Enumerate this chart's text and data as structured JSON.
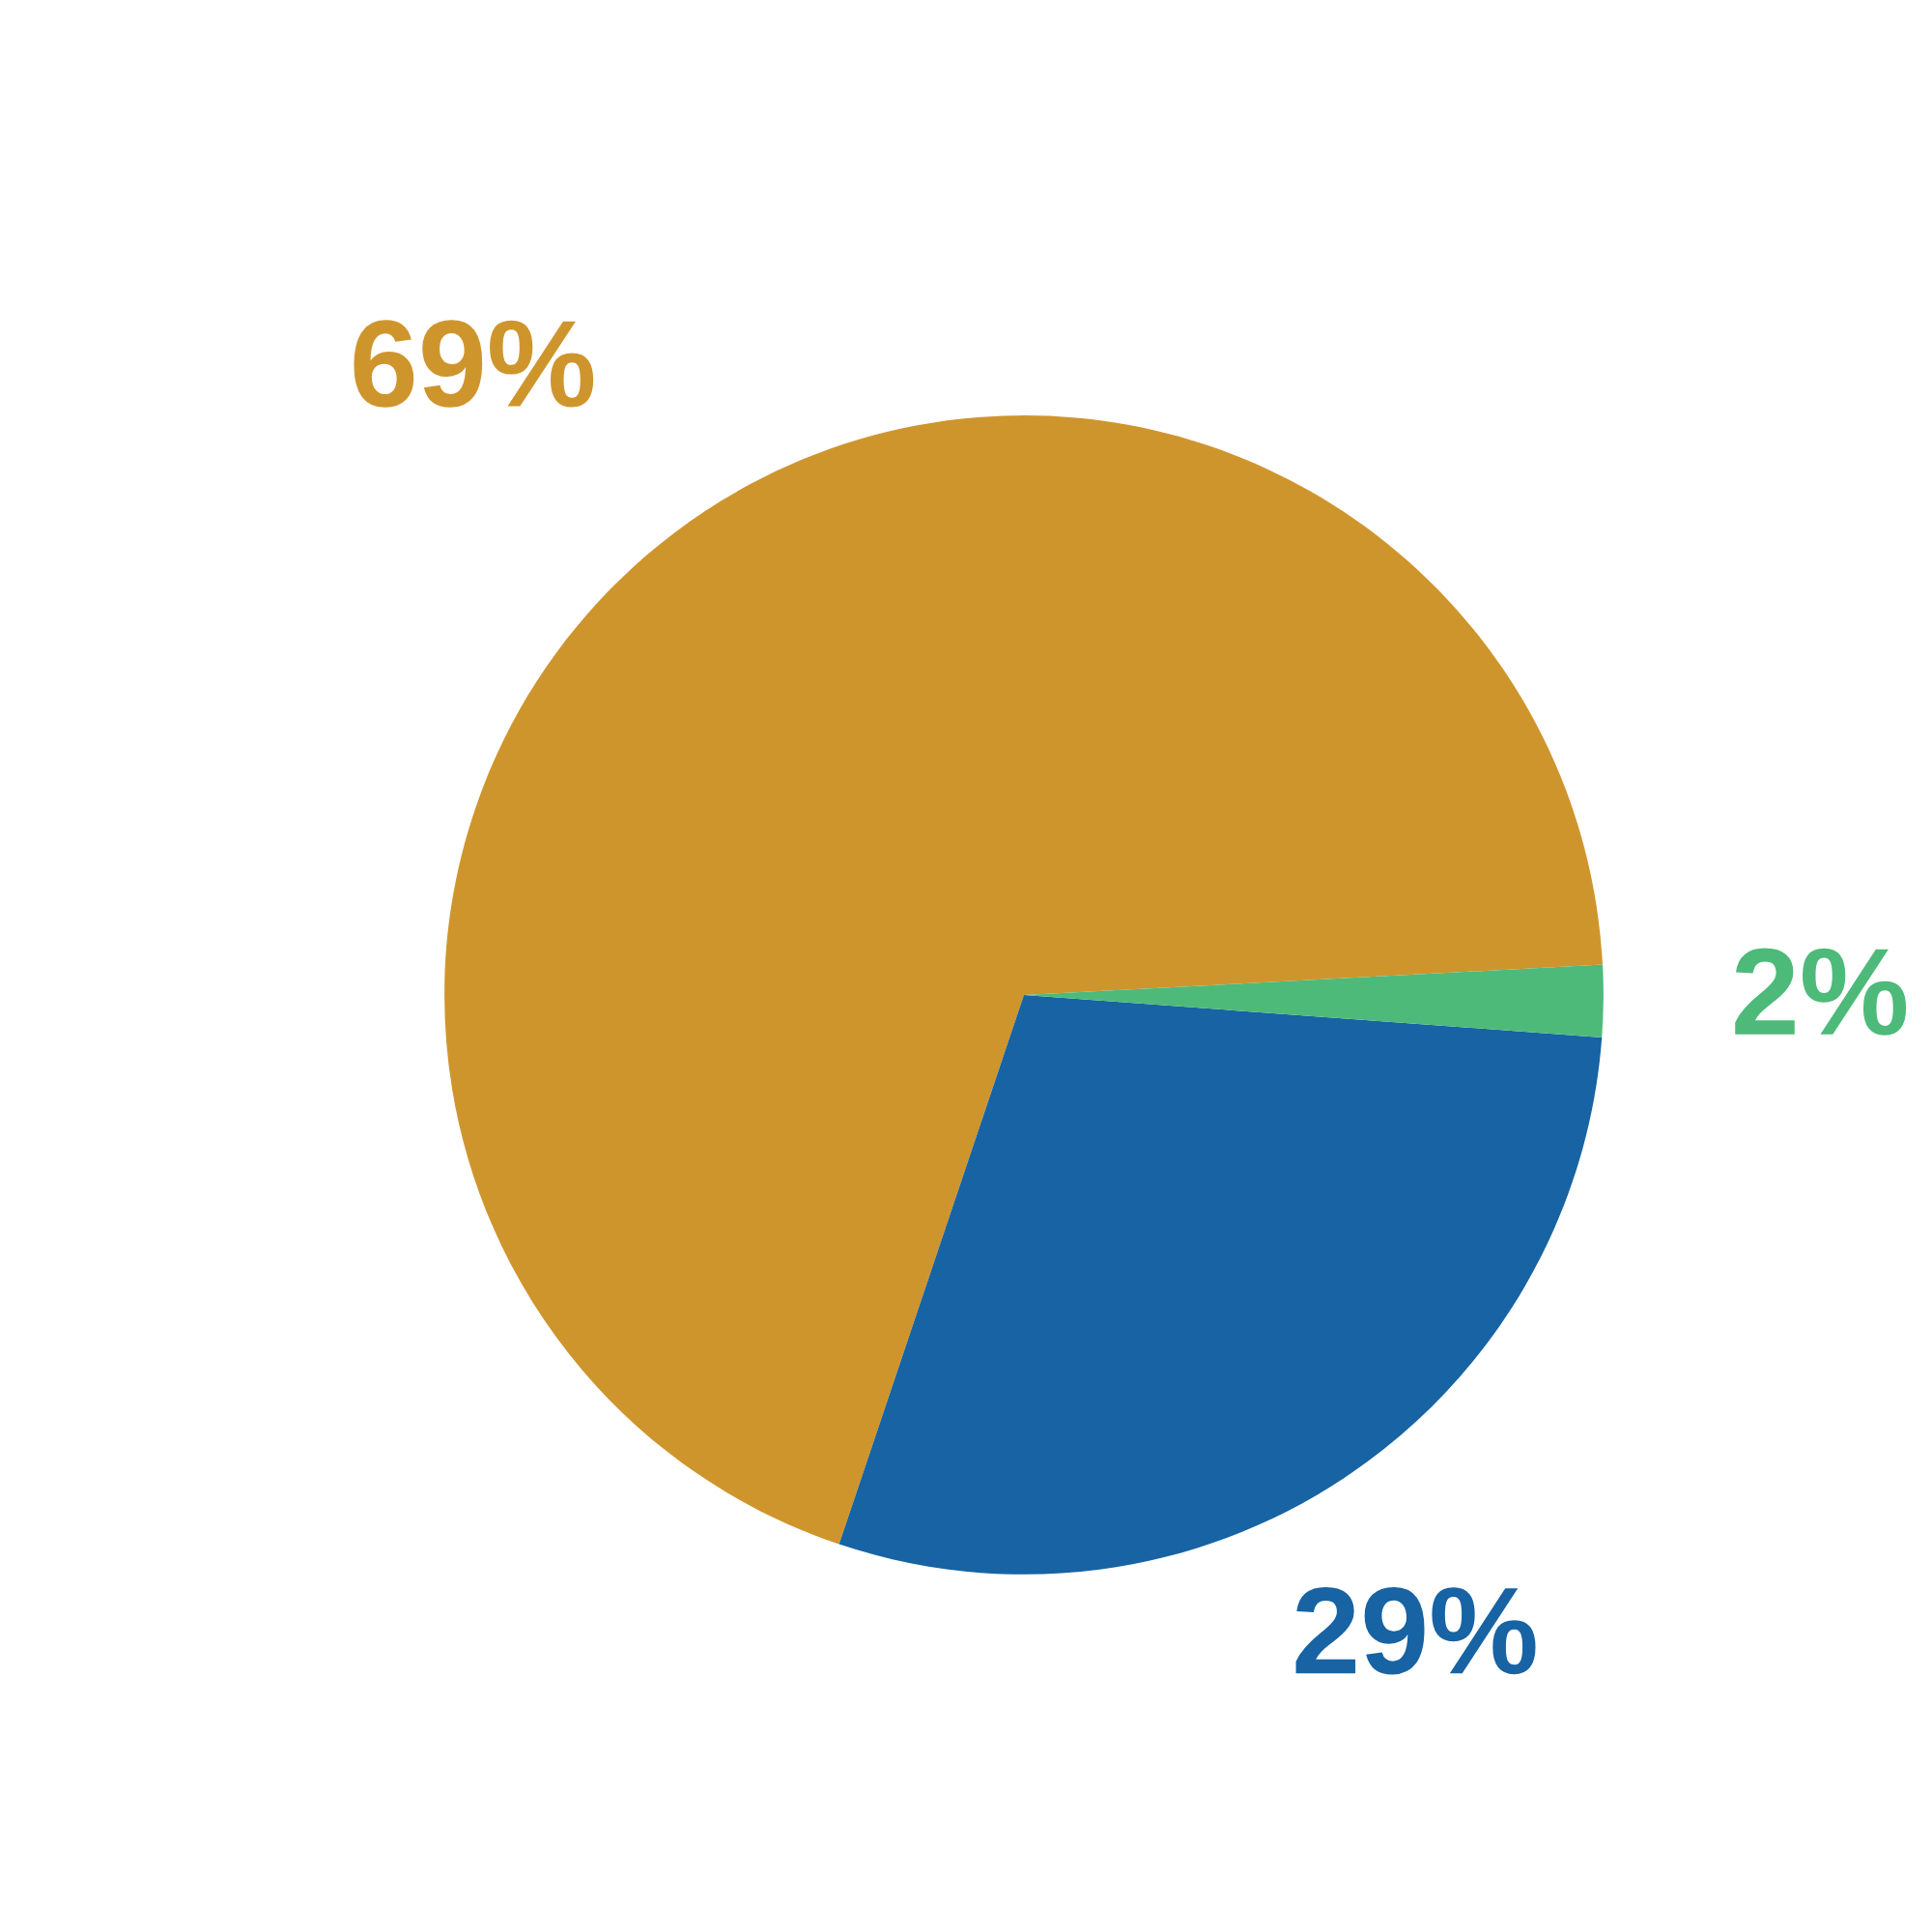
{
  "chart_data": {
    "type": "pie",
    "categories": [
      null,
      null,
      null
    ],
    "values": [
      69,
      29,
      2
    ],
    "colors": [
      "#cf952d",
      "#1763a3",
      "#4dba7a"
    ],
    "value_labels": [
      "69%",
      "29%",
      "2%"
    ],
    "legend": false
  }
}
